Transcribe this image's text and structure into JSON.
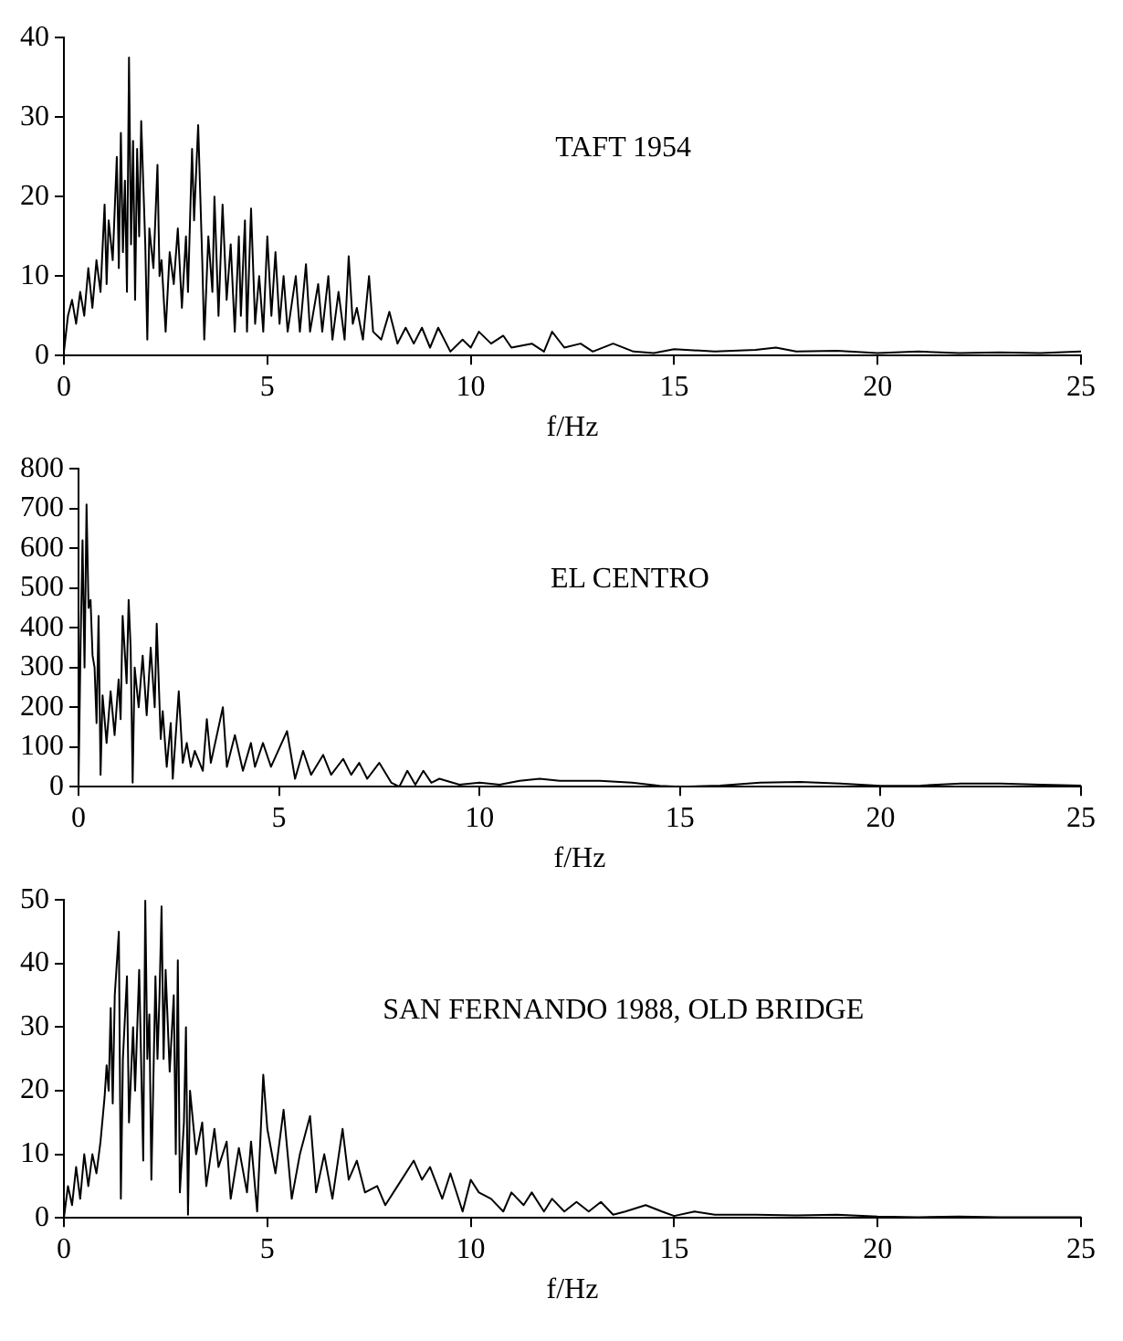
{
  "chart_data": [
    {
      "type": "line",
      "xlabel": "f/Hz",
      "annotations": [
        "TAFT 1954"
      ],
      "xlim": [
        0,
        25
      ],
      "xticks": [
        0,
        5,
        10,
        15,
        20,
        25
      ],
      "ylim": [
        0,
        40
      ],
      "yticks": [
        0,
        10,
        20,
        30,
        40
      ],
      "x": [
        0,
        0.1,
        0.2,
        0.3,
        0.4,
        0.5,
        0.6,
        0.7,
        0.8,
        0.9,
        1.0,
        1.05,
        1.1,
        1.2,
        1.3,
        1.35,
        1.4,
        1.45,
        1.5,
        1.55,
        1.6,
        1.65,
        1.7,
        1.75,
        1.8,
        1.85,
        1.9,
        2.0,
        2.05,
        2.1,
        2.2,
        2.3,
        2.35,
        2.4,
        2.5,
        2.6,
        2.7,
        2.8,
        2.9,
        3.0,
        3.05,
        3.15,
        3.2,
        3.3,
        3.4,
        3.45,
        3.55,
        3.65,
        3.7,
        3.8,
        3.9,
        4.0,
        4.1,
        4.2,
        4.3,
        4.35,
        4.45,
        4.5,
        4.6,
        4.7,
        4.8,
        4.9,
        5.0,
        5.1,
        5.2,
        5.3,
        5.4,
        5.5,
        5.7,
        5.8,
        5.95,
        6.05,
        6.25,
        6.35,
        6.5,
        6.6,
        6.75,
        6.9,
        7.0,
        7.1,
        7.2,
        7.35,
        7.5,
        7.6,
        7.8,
        8.0,
        8.2,
        8.4,
        8.6,
        8.8,
        9.0,
        9.2,
        9.5,
        9.8,
        10.0,
        10.2,
        10.5,
        10.8,
        11.0,
        11.5,
        11.8,
        12.0,
        12.3,
        12.7,
        13.0,
        13.5,
        14.0,
        14.5,
        15.0,
        16,
        17,
        17.5,
        18,
        19,
        20,
        21,
        22,
        23,
        24,
        25
      ],
      "series": [
        {
          "color": "#000000",
          "values": [
            0.5,
            5,
            7,
            4,
            8,
            5,
            11,
            6,
            12,
            8,
            19,
            9,
            17,
            12,
            25,
            11,
            28,
            13,
            22,
            8,
            37.5,
            14,
            27,
            7,
            26,
            15,
            29.5,
            14,
            2,
            16,
            11,
            24,
            10,
            12,
            3,
            13,
            9,
            16,
            6,
            15,
            8,
            26,
            17,
            29,
            12,
            2,
            15,
            8,
            20,
            5,
            19,
            7,
            14,
            3,
            15,
            5,
            17,
            3,
            18.5,
            4,
            10,
            3,
            15,
            5,
            13,
            4,
            10,
            3,
            10,
            3,
            11.5,
            3,
            9,
            3,
            10,
            2,
            8,
            2,
            12.5,
            4,
            6,
            2,
            10,
            3,
            2,
            5.5,
            1.5,
            3.5,
            1.5,
            3.5,
            1,
            3.5,
            0.5,
            2,
            1,
            3,
            1.5,
            2.5,
            1,
            1.5,
            0.5,
            3,
            1,
            1.5,
            0.5,
            1.5,
            0.5,
            0.3,
            0.8,
            0.5,
            0.7,
            1,
            0.5,
            0.6,
            0.3,
            0.5,
            0.3,
            0.4,
            0.3,
            0.5
          ]
        }
      ]
    },
    {
      "type": "line",
      "xlabel": "f/Hz",
      "annotations": [
        "EL CENTRO"
      ],
      "xlim": [
        0,
        25
      ],
      "xticks": [
        0,
        5,
        10,
        15,
        20,
        25
      ],
      "ylim": [
        0,
        800
      ],
      "yticks": [
        0,
        100,
        200,
        300,
        400,
        500,
        600,
        700,
        800
      ],
      "x": [
        0,
        0.05,
        0.1,
        0.15,
        0.2,
        0.25,
        0.3,
        0.35,
        0.4,
        0.45,
        0.5,
        0.55,
        0.6,
        0.7,
        0.8,
        0.9,
        1.0,
        1.05,
        1.1,
        1.2,
        1.25,
        1.3,
        1.35,
        1.4,
        1.5,
        1.6,
        1.7,
        1.8,
        1.9,
        1.95,
        2.05,
        2.1,
        2.2,
        2.3,
        2.35,
        2.5,
        2.6,
        2.7,
        2.8,
        2.9,
        3.1,
        3.2,
        3.3,
        3.6,
        3.7,
        3.9,
        4.1,
        4.3,
        4.4,
        4.6,
        4.8,
        5.2,
        5.4,
        5.6,
        5.8,
        6.1,
        6.3,
        6.6,
        6.8,
        7.0,
        7.2,
        7.5,
        7.8,
        8.0,
        8.2,
        8.4,
        8.6,
        8.8,
        9.0,
        9.5,
        10,
        10.5,
        11,
        11.5,
        12,
        13,
        13.8,
        14.5,
        15,
        16,
        17,
        18,
        19,
        20,
        21,
        22,
        23,
        24,
        25
      ],
      "series": [
        {
          "color": "#000000",
          "values": [
            0,
            350,
            620,
            300,
            710,
            450,
            470,
            330,
            300,
            160,
            430,
            30,
            230,
            110,
            240,
            130,
            270,
            170,
            430,
            260,
            470,
            350,
            10,
            300,
            200,
            330,
            180,
            350,
            200,
            410,
            120,
            190,
            50,
            160,
            20,
            240,
            60,
            110,
            50,
            90,
            40,
            170,
            60,
            200,
            50,
            130,
            40,
            110,
            50,
            110,
            50,
            140,
            20,
            90,
            30,
            80,
            30,
            70,
            30,
            60,
            20,
            60,
            10,
            0,
            40,
            5,
            40,
            10,
            20,
            5,
            10,
            5,
            15,
            20,
            15,
            15,
            10,
            2,
            0,
            3,
            10,
            12,
            8,
            2,
            3,
            8,
            8,
            5,
            3
          ]
        }
      ]
    },
    {
      "type": "line",
      "xlabel": "f/Hz",
      "annotations": [
        "SAN FERNANDO 1988, OLD BRIDGE"
      ],
      "xlim": [
        0,
        25
      ],
      "xticks": [
        0,
        5,
        10,
        15,
        20,
        25
      ],
      "ylim": [
        0,
        50
      ],
      "yticks": [
        0,
        10,
        20,
        30,
        40,
        50
      ],
      "x": [
        0,
        0.1,
        0.2,
        0.3,
        0.4,
        0.5,
        0.6,
        0.7,
        0.8,
        0.9,
        1.0,
        1.05,
        1.1,
        1.15,
        1.2,
        1.25,
        1.35,
        1.4,
        1.45,
        1.55,
        1.6,
        1.7,
        1.75,
        1.85,
        1.95,
        2.0,
        2.05,
        2.1,
        2.15,
        2.25,
        2.3,
        2.35,
        2.4,
        2.45,
        2.5,
        2.6,
        2.7,
        2.75,
        2.8,
        2.85,
        2.95,
        3.0,
        3.05,
        3.1,
        3.25,
        3.4,
        3.5,
        3.7,
        3.8,
        4.0,
        4.1,
        4.3,
        4.5,
        4.6,
        4.75,
        4.9,
        5.0,
        5.2,
        5.4,
        5.6,
        5.8,
        6.05,
        6.2,
        6.4,
        6.6,
        6.85,
        7.0,
        7.2,
        7.4,
        7.7,
        7.9,
        8.2,
        8.6,
        8.8,
        9.0,
        9.3,
        9.5,
        9.8,
        10.0,
        10.2,
        10.5,
        10.8,
        11.0,
        11.3,
        11.5,
        11.8,
        12.0,
        12.3,
        12.6,
        12.9,
        13.2,
        13.5,
        13.8,
        14.3,
        14.7,
        15.0,
        15.5,
        16,
        17,
        18,
        19,
        20,
        21,
        22,
        23,
        24,
        25
      ],
      "series": [
        {
          "color": "#000000",
          "values": [
            0,
            5,
            2,
            8,
            3,
            10,
            5,
            10,
            7,
            12,
            19,
            24,
            20,
            33,
            18,
            35,
            45,
            3,
            25,
            38,
            15,
            30,
            20,
            39,
            9,
            50,
            25,
            32,
            6,
            38,
            25,
            35,
            49,
            25,
            39,
            23,
            35,
            10,
            40.5,
            4,
            15,
            30,
            0.5,
            20,
            10,
            15,
            5,
            14,
            8,
            12,
            3,
            11,
            4,
            12,
            1,
            22.5,
            14,
            7,
            17,
            3,
            10,
            16,
            4,
            10,
            3,
            14,
            6,
            9,
            4,
            5,
            2,
            5,
            9,
            6,
            8,
            3,
            7,
            1,
            6,
            4,
            3,
            1,
            4,
            2,
            4,
            1,
            3,
            1,
            2.5,
            1,
            2.5,
            0.5,
            1,
            2,
            1,
            0.3,
            1,
            0.5,
            0.5,
            0.4,
            0.5,
            0.2,
            0.1,
            0.2,
            0.1,
            0.1,
            0.1
          ]
        }
      ]
    }
  ]
}
